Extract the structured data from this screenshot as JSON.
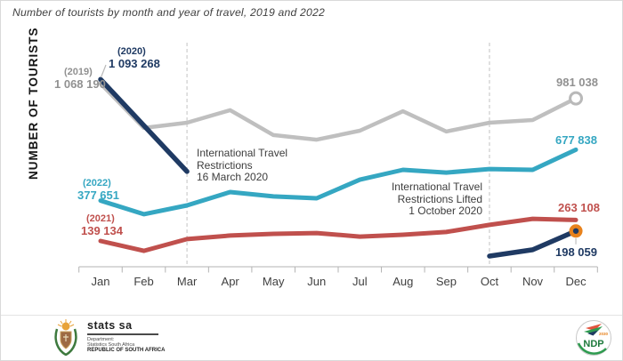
{
  "title": "Number of tourists by month and year of travel, 2019 and 2022",
  "y_axis_label": "NUMBER OF TOURISTS",
  "colors": {
    "navy": "#1f3a63",
    "gray_line": "#bfbfbf",
    "gray_label": "#919191",
    "teal": "#35a7c2",
    "red": "#c0504d",
    "orange_marker": "#e8821c",
    "annotation_text": "#3d3d3d",
    "axis": "#b3b3b3"
  },
  "chart_data": {
    "type": "line",
    "title": "Number of tourists by month and year of travel, 2019 and 2022",
    "xlabel": "",
    "ylabel": "NUMBER OF TOURISTS",
    "grid": false,
    "legend_position": "none",
    "ylim": [
      0,
      1150000
    ],
    "categories": [
      "Jan",
      "Feb",
      "Mar",
      "Apr",
      "May",
      "Jun",
      "Jul",
      "Aug",
      "Sep",
      "Oct",
      "Nov",
      "Dec"
    ],
    "series": [
      {
        "name": "2019",
        "color": "#bfbfbf",
        "values": [
          1068190,
          806000,
          837000,
          911000,
          764000,
          737000,
          790000,
          905000,
          785000,
          837000,
          853000,
          981038
        ],
        "end_marker": "open-circle",
        "labeled_points": {
          "Jan": 1068190,
          "Dec": 981038
        }
      },
      {
        "name": "2022",
        "color": "#35a7c2",
        "values": [
          377651,
          297000,
          349000,
          428000,
          402000,
          391000,
          501000,
          559000,
          543000,
          564000,
          559000,
          677838
        ],
        "labeled_points": {
          "Jan": 377651,
          "Dec": 677838
        }
      },
      {
        "name": "2021",
        "color": "#c0504d",
        "values": [
          139134,
          81000,
          150000,
          171000,
          181000,
          186000,
          165000,
          176000,
          192000,
          234000,
          270000,
          263108
        ],
        "labeled_points": {
          "Jan": 139134,
          "Dec": 263108
        }
      },
      {
        "name": "2020",
        "color": "#1f3a63",
        "values": [
          1093268,
          821000,
          549000,
          null,
          null,
          null,
          null,
          null,
          null,
          50000,
          87000,
          198059
        ],
        "end_marker": "orange-ring-dot",
        "labeled_points": {
          "Jan": 1093268,
          "Dec": 198059
        }
      }
    ],
    "dashed_reference_months": [
      "Mar",
      "Oct"
    ],
    "callouts": {
      "y2020_tag": "(2020)",
      "y2020_value": "1 093 268",
      "y2019_tag": "(2019)",
      "y2019_value": "1 068 190",
      "y2022_tag": "(2022)",
      "y2022_value": "377 651",
      "y2021_tag": "(2021)",
      "y2021_value": "139 134",
      "end_2019": "981 038",
      "end_2022": "677 838",
      "end_2021": "263 108",
      "end_2020": "198 059"
    },
    "annotations": [
      {
        "lines": [
          "International Travel",
          "Restrictions",
          "16 March 2020"
        ],
        "anchor_month": "Mar",
        "align": "left"
      },
      {
        "lines": [
          "International Travel",
          "Restrictions Lifted",
          "1 October 2020"
        ],
        "anchor_month": "Oct",
        "align": "right"
      }
    ]
  },
  "footer": {
    "statssa": {
      "wordmark": "stats sa",
      "dept_line1": "Department:",
      "dept_line2": "Statistics South Africa",
      "dept_line3": "REPUBLIC OF SOUTH AFRICA"
    },
    "ndp": {
      "label": "NDP",
      "year": "2030"
    }
  }
}
